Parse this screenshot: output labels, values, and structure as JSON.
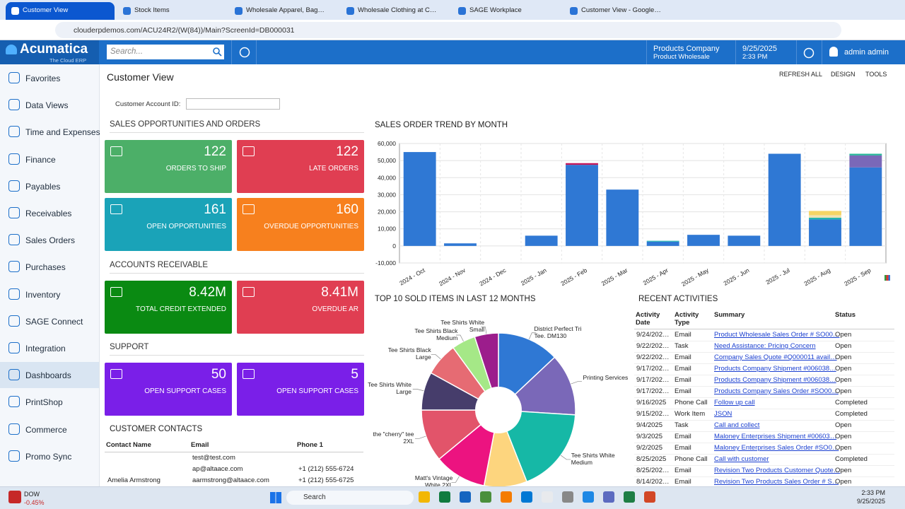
{
  "browser": {
    "tabs": [
      "Customer View",
      "Stock Items",
      "Wholesale Apparel, Bags and C",
      "Wholesale Clothing at Case & I",
      "SAGE Workplace",
      "Customer View - Google Chron"
    ],
    "url": "clouderpdemos.com/ACU24R2/(W(84))/Main?ScreenId=DB000031"
  },
  "header": {
    "logo": "Acumatica",
    "tagline": "The Cloud ERP",
    "search": "Search...",
    "company": "Products Company",
    "branch": "Product Wholesale",
    "date": "9/25/2025",
    "time": "2:33 PM",
    "user": "admin admin"
  },
  "sidebar": [
    "Favorites",
    "Data Views",
    "Time and Expenses",
    "Finance",
    "Payables",
    "Receivables",
    "Sales Orders",
    "Purchases",
    "Inventory",
    "SAGE Connect",
    "Integration",
    "Dashboards",
    "PrintShop",
    "Commerce",
    "Promo Sync"
  ],
  "page": {
    "title": "Customer View",
    "toolbar": [
      "REFRESH ALL",
      "DESIGN",
      "TOOLS"
    ],
    "filter_label": "Customer Account ID:"
  },
  "sections": [
    {
      "title": "SALES OPPORTUNITIES AND ORDERS",
      "tiles": [
        {
          "value": 122,
          "label": "ORDERS TO SHIP",
          "color": "#4caf68"
        },
        {
          "value": 122,
          "label": "LATE ORDERS",
          "color": "#e03e52"
        },
        {
          "value": 161,
          "label": "OPEN OPPORTUNITIES",
          "color": "#1aa3b8"
        },
        {
          "value": 160,
          "label": "OVERDUE OPPORTUNITIES",
          "color": "#f7801e"
        }
      ]
    },
    {
      "title": "ACCOUNTS RECEIVABLE",
      "tiles": [
        {
          "value": "8.42M",
          "label": "TOTAL CREDIT EXTENDED",
          "color": "#0a8a12"
        },
        {
          "value": "8.41M",
          "label": "OVERDUE AR",
          "color": "#e03e52"
        }
      ]
    },
    {
      "title": "SUPPORT",
      "tiles": [
        {
          "value": 50,
          "label": "OPEN SUPPORT CASES",
          "color": "#7a1fe8"
        },
        {
          "value": 5,
          "label": "OPEN SUPPORT CASES",
          "color": "#7a1fe8"
        }
      ]
    }
  ],
  "contacts": {
    "title": "CUSTOMER CONTACTS",
    "columns": [
      "Contact Name",
      "Email",
      "Phone 1"
    ],
    "rows": [
      [
        null,
        "test@test.com",
        null
      ],
      [
        null,
        "ap@altaace.com",
        "+1 (212) 555-6724"
      ],
      [
        "Amelia Armstrong",
        "aarmstrong@altaace.com",
        "+1 (212) 555-6725"
      ]
    ]
  },
  "activities": {
    "title": "RECENT ACTIVITIES",
    "columns": [
      "Activity Date",
      "Activity Type",
      "Summary",
      "Status"
    ],
    "rows": [
      [
        "9/24/202…",
        "Email",
        "Product Wholesale Sales Order # SO00…",
        "Open"
      ],
      [
        "9/22/202…",
        "Task",
        "Need Assistance: Pricing Concern",
        "Open"
      ],
      [
        "9/22/202…",
        "Email",
        "Company Sales Quote #Q000011 avail…",
        "Open"
      ],
      [
        "9/17/202…",
        "Email",
        "Products Company Shipment #006038…",
        "Open"
      ],
      [
        "9/17/202…",
        "Email",
        "Products Company Shipment #006038…",
        "Open"
      ],
      [
        "9/17/202…",
        "Email",
        "Products Company Sales Order #SO00…",
        "Open"
      ],
      [
        "9/16/2025",
        "Phone Call",
        "Follow up call",
        "Completed"
      ],
      [
        "9/15/202…",
        "Work Item",
        "JSON",
        "Completed"
      ],
      [
        "9/4/2025",
        "Task",
        "Call and collect",
        "Open"
      ],
      [
        "9/3/2025",
        "Email",
        "Maloney Enterprises Shipment #00603…",
        "Open"
      ],
      [
        "9/2/2025",
        "Email",
        "Maloney Enterprises Sales Order #SO0…",
        "Open"
      ],
      [
        "8/25/2025",
        "Phone Call",
        "Call with customer",
        "Completed"
      ],
      [
        "8/25/202…",
        "Email",
        "Revision Two Products Customer Quote…",
        "Open"
      ],
      [
        "8/14/202…",
        "Email",
        "Revision Two Products Sales Order # S…",
        "Open"
      ]
    ]
  },
  "chart_data": [
    {
      "type": "bar",
      "title": "SALES ORDER TREND BY MONTH",
      "stacked": true,
      "grid": true,
      "categories": [
        "2024 - Oct",
        "2024 - Nov",
        "2024 - Dec",
        "2025 - Jan",
        "2025 - Feb",
        "2025 - Mar",
        "2025 - Apr",
        "2025 - May",
        "2025 - Jun",
        "2025 - Jul",
        "2025 - Aug",
        "2025 - Sep"
      ],
      "series": [
        {
          "color": "#2f78d4",
          "values": [
            55000,
            1500,
            0,
            6000,
            47500,
            33000,
            2500,
            6500,
            6000,
            54000,
            15500,
            46000
          ]
        },
        {
          "color": "#22b3b0",
          "values": [
            0,
            0,
            0,
            0,
            0,
            0,
            500,
            0,
            0,
            0,
            1000,
            0
          ]
        },
        {
          "color": "#7a68b8",
          "values": [
            0,
            0,
            0,
            0,
            0,
            0,
            0,
            0,
            0,
            0,
            0,
            7000
          ]
        },
        {
          "color": "#c2185b",
          "values": [
            0,
            0,
            0,
            0,
            1000,
            0,
            0,
            0,
            0,
            0,
            0,
            0
          ]
        },
        {
          "color": "#efe2b2",
          "values": [
            0,
            0,
            0,
            0,
            0,
            0,
            0,
            0,
            0,
            0,
            1500,
            0
          ]
        },
        {
          "color": "#f5d565",
          "values": [
            0,
            0,
            0,
            0,
            0,
            0,
            0,
            0,
            0,
            0,
            2500,
            0
          ]
        },
        {
          "color": "#2ab59a",
          "values": [
            0,
            0,
            0,
            0,
            0,
            0,
            0,
            0,
            0,
            0,
            0,
            1000
          ]
        }
      ],
      "ylim": [
        -10000,
        60000
      ],
      "yticks": [
        {
          "value": -10000,
          "label": "-10,000"
        },
        0,
        {
          "value": 10000,
          "label": "10,000"
        },
        {
          "value": 20000,
          "label": "20,000"
        },
        {
          "value": 30000,
          "label": "30,000"
        },
        {
          "value": 40000,
          "label": "40,000"
        },
        {
          "value": 50000,
          "label": "50,000"
        },
        {
          "value": 60000,
          "label": "60,000"
        }
      ]
    },
    {
      "type": "pie",
      "title": "TOP 10 SOLD ITEMS IN LAST 12 MONTHS",
      "donut": true,
      "categories": [
        "District Perfect Tri Tee. DM130",
        "Printing Services",
        "Tee Shirts White Medium",
        null,
        "Matt's Vintage White 2XL",
        "the \"cherry\" tee 2XL",
        "Tee Shirts White Large",
        "Tee Shirts Black Large",
        "Tee Shirts Black Medium",
        "Tee Shirts White Small"
      ],
      "values": [
        13,
        13,
        18,
        9,
        11,
        11,
        8,
        7,
        5,
        5
      ],
      "colors": [
        "#2f78d4",
        "#7a68b8",
        "#16b8a6",
        "#fdd57e",
        "#ec1380",
        "#e2546a",
        "#463d6b",
        "#e66b73",
        "#a5e887",
        "#9c1d8c"
      ]
    }
  ],
  "taskbar": {
    "ticker": "DOW",
    "change": "-0.45%",
    "search": "Search",
    "time": "2:33 PM",
    "date": "9/25/2025"
  }
}
